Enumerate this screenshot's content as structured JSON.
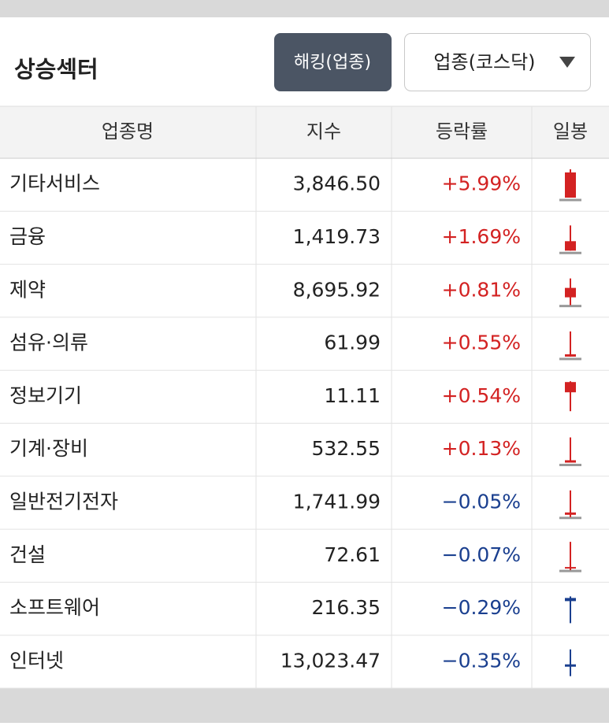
{
  "header": {
    "title": "상승섹터",
    "button": "해킹(업종)",
    "dropdown": "업종(코스닥)"
  },
  "table": {
    "columns": [
      "업종명",
      "지수",
      "등락률",
      "일봉"
    ],
    "rows": [
      [
        "기타서비스",
        "3,846.50",
        "+5.99%"
      ],
      [
        "금융",
        "1,419.73",
        "+1.69%"
      ],
      [
        "제약",
        "8,695.92",
        "+0.81%"
      ],
      [
        "섬유·의류",
        "61.99",
        "+0.55%"
      ],
      [
        "정보기기",
        "11.11",
        "+0.54%"
      ],
      [
        "기계·장비",
        "532.55",
        "+0.13%"
      ],
      [
        "일반전기전자",
        "1,741.99",
        "−0.05%"
      ],
      [
        "건설",
        "72.61",
        "−0.07%"
      ],
      [
        "소프트웨어",
        "216.35",
        "−0.29%"
      ],
      [
        "인터넷",
        "13,023.47",
        "−0.35%"
      ]
    ]
  }
}
